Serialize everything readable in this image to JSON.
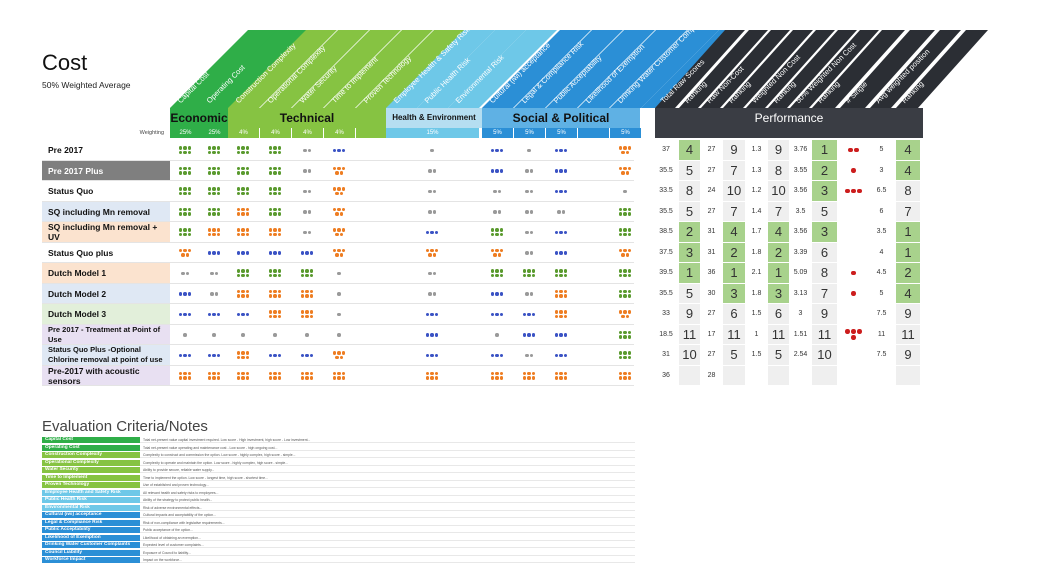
{
  "title": "Cost",
  "subtitle": "50% Weighted Average",
  "weighting_label": "Weighting",
  "criteria_columns": [
    {
      "label": "Capital Cost",
      "color": "#2fae48",
      "weight": "25%"
    },
    {
      "label": "Operating Cost",
      "color": "#2fae48",
      "weight": "25%"
    },
    {
      "label": "Construction Complexity",
      "color": "#86c342",
      "weight": "4%"
    },
    {
      "label": "Operational Complexity",
      "color": "#86c342",
      "weight": "4%"
    },
    {
      "label": "Water Security",
      "color": "#86c342",
      "weight": "4%"
    },
    {
      "label": "Time to Implement",
      "color": "#86c342",
      "weight": "4%"
    },
    {
      "label": "Proven Technology",
      "color": "#86c342",
      "weight": ""
    },
    {
      "label": "Employee Health & Safety Risk",
      "color": "#6ec8e8",
      "weight": ""
    },
    {
      "label": "Public Health Risk",
      "color": "#6ec8e8",
      "weight": "15%"
    },
    {
      "label": "Environmental Risk",
      "color": "#6ec8e8",
      "weight": ""
    },
    {
      "label": "Cultural (iwi) acceptance",
      "color": "#2b8fd6",
      "weight": "5%"
    },
    {
      "label": "Legal & Compliance Risk",
      "color": "#2b8fd6",
      "weight": "5%"
    },
    {
      "label": "Public Acceptability",
      "color": "#2b8fd6",
      "weight": "5%"
    },
    {
      "label": "Likelihood of Exemption",
      "color": "#2b8fd6",
      "weight": ""
    },
    {
      "label": "Drinking Water Customer Comp.",
      "color": "#2b8fd6",
      "weight": "5%"
    }
  ],
  "perf_columns": [
    "Total Raw Scores",
    "Ranking",
    "Raw Non-Cost",
    "Ranking",
    "Weighted Non Cost",
    "Ranking",
    "50% Weighted Non Cost",
    "Ranking",
    "# Single",
    "Avg weighted position",
    "Ranking"
  ],
  "groups": {
    "economic": "Economic",
    "technical": "Technical",
    "health": "Health & Environment",
    "social": "Social & Political",
    "performance": "Performance"
  },
  "colors": {
    "green": "#5a9a2e",
    "blue": "#3a52c4",
    "orange": "#ee7d22",
    "grey": "#999999",
    "red": "#cc1d1d",
    "perf_green": "#a8d28c",
    "perf_header": "#3a3d44"
  },
  "rows": [
    {
      "label": "Pre 2017",
      "bg": "#ffffff",
      "fg": "#111",
      "dots": [
        [
          "green",
          6
        ],
        [
          "green",
          6
        ],
        [
          "green",
          6
        ],
        [
          "green",
          6
        ],
        [
          "grey",
          2
        ],
        [
          "blue",
          3
        ],
        [
          "none",
          0
        ],
        [
          "none",
          0
        ],
        [
          "grey",
          1
        ],
        [
          "none",
          0
        ],
        [
          "blue",
          3
        ],
        [
          "grey",
          1
        ],
        [
          "blue",
          3
        ],
        [
          "none",
          0
        ],
        [
          "orange",
          5
        ]
      ],
      "perf": [
        "37",
        "4",
        "27",
        "9",
        "1.3",
        "9",
        "3.76",
        "1",
        "reds:2",
        "5",
        "4"
      ]
    },
    {
      "label": "Pre 2017 Plus",
      "bg": "#7f7f7f",
      "fg": "#fff",
      "dots": [
        [
          "green",
          6
        ],
        [
          "green",
          6
        ],
        [
          "green",
          6
        ],
        [
          "green",
          6
        ],
        [
          "grey",
          2
        ],
        [
          "orange",
          5
        ],
        [
          "none",
          0
        ],
        [
          "none",
          0
        ],
        [
          "grey",
          2
        ],
        [
          "none",
          0
        ],
        [
          "blue",
          3
        ],
        [
          "grey",
          2
        ],
        [
          "blue",
          3
        ],
        [
          "none",
          0
        ],
        [
          "orange",
          5
        ]
      ],
      "perf": [
        "35.5",
        "5",
        "27",
        "7",
        "1.3",
        "8",
        "3.55",
        "2",
        "reds:1",
        "3",
        "4"
      ]
    },
    {
      "label": "Status Quo",
      "bg": "#ffffff",
      "fg": "#111",
      "dots": [
        [
          "green",
          6
        ],
        [
          "green",
          6
        ],
        [
          "green",
          6
        ],
        [
          "green",
          6
        ],
        [
          "grey",
          2
        ],
        [
          "orange",
          5
        ],
        [
          "none",
          0
        ],
        [
          "none",
          0
        ],
        [
          "grey",
          2
        ],
        [
          "none",
          0
        ],
        [
          "grey",
          2
        ],
        [
          "grey",
          2
        ],
        [
          "blue",
          3
        ],
        [
          "none",
          0
        ],
        [
          "grey",
          1
        ]
      ],
      "perf": [
        "33.5",
        "8",
        "24",
        "10",
        "1.2",
        "10",
        "3.56",
        "3",
        "reds:3",
        "6.5",
        "8"
      ]
    },
    {
      "label": "SQ including Mn removal",
      "bg": "#dfe8f4",
      "fg": "#111",
      "dots": [
        [
          "green",
          6
        ],
        [
          "green",
          6
        ],
        [
          "orange",
          6
        ],
        [
          "green",
          6
        ],
        [
          "grey",
          2
        ],
        [
          "orange",
          5
        ],
        [
          "none",
          0
        ],
        [
          "none",
          0
        ],
        [
          "grey",
          2
        ],
        [
          "none",
          0
        ],
        [
          "grey",
          2
        ],
        [
          "grey",
          2
        ],
        [
          "grey",
          2
        ],
        [
          "none",
          0
        ],
        [
          "green",
          6
        ]
      ],
      "perf": [
        "35.5",
        "5",
        "27",
        "7",
        "1.4",
        "7",
        "3.5",
        "5",
        "reds:0",
        "6",
        "7"
      ]
    },
    {
      "label": "SQ including Mn removal + UV",
      "bg": "#fbe3cf",
      "fg": "#111",
      "dots": [
        [
          "green",
          6
        ],
        [
          "orange",
          6
        ],
        [
          "orange",
          6
        ],
        [
          "orange",
          6
        ],
        [
          "grey",
          2
        ],
        [
          "orange",
          5
        ],
        [
          "none",
          0
        ],
        [
          "none",
          0
        ],
        [
          "blue",
          3
        ],
        [
          "none",
          0
        ],
        [
          "green",
          6
        ],
        [
          "grey",
          2
        ],
        [
          "blue",
          3
        ],
        [
          "none",
          0
        ],
        [
          "green",
          6
        ]
      ],
      "perf": [
        "38.5",
        "2",
        "31",
        "4",
        "1.7",
        "4",
        "3.56",
        "3",
        "reds:0",
        "3.5",
        "1"
      ]
    },
    {
      "label": "Status Quo plus",
      "bg": "#ffffff",
      "fg": "#111",
      "dots": [
        [
          "orange",
          5
        ],
        [
          "blue",
          3
        ],
        [
          "blue",
          3
        ],
        [
          "blue",
          3
        ],
        [
          "blue",
          3
        ],
        [
          "orange",
          5
        ],
        [
          "none",
          0
        ],
        [
          "none",
          0
        ],
        [
          "orange",
          5
        ],
        [
          "none",
          0
        ],
        [
          "orange",
          5
        ],
        [
          "grey",
          2
        ],
        [
          "blue",
          3
        ],
        [
          "none",
          0
        ],
        [
          "orange",
          5
        ]
      ],
      "perf": [
        "37.5",
        "3",
        "31",
        "2",
        "1.8",
        "2",
        "3.39",
        "6",
        "reds:0",
        "4",
        "1"
      ]
    },
    {
      "label": "Dutch Model 1",
      "bg": "#fbe3cf",
      "fg": "#111",
      "dots": [
        [
          "grey",
          2
        ],
        [
          "grey",
          2
        ],
        [
          "green",
          6
        ],
        [
          "green",
          6
        ],
        [
          "green",
          6
        ],
        [
          "grey",
          1
        ],
        [
          "none",
          0
        ],
        [
          "none",
          0
        ],
        [
          "grey",
          2
        ],
        [
          "none",
          0
        ],
        [
          "green",
          6
        ],
        [
          "green",
          6
        ],
        [
          "green",
          6
        ],
        [
          "none",
          0
        ],
        [
          "green",
          6
        ]
      ],
      "perf": [
        "39.5",
        "1",
        "36",
        "1",
        "2.1",
        "1",
        "5.09",
        "8",
        "reds:1",
        "4.5",
        "2"
      ]
    },
    {
      "label": "Dutch Model 2",
      "bg": "#dfe8f4",
      "fg": "#111",
      "dots": [
        [
          "blue",
          3
        ],
        [
          "grey",
          2
        ],
        [
          "orange",
          6
        ],
        [
          "orange",
          6
        ],
        [
          "orange",
          6
        ],
        [
          "grey",
          1
        ],
        [
          "none",
          0
        ],
        [
          "none",
          0
        ],
        [
          "grey",
          2
        ],
        [
          "none",
          0
        ],
        [
          "blue",
          3
        ],
        [
          "grey",
          2
        ],
        [
          "orange",
          6
        ],
        [
          "none",
          0
        ],
        [
          "green",
          6
        ]
      ],
      "perf": [
        "35.5",
        "5",
        "30",
        "3",
        "1.8",
        "3",
        "3.13",
        "7",
        "reds:1",
        "5",
        "4"
      ]
    },
    {
      "label": "Dutch Model 3",
      "bg": "#e2efda",
      "fg": "#111",
      "dots": [
        [
          "blue",
          3
        ],
        [
          "blue",
          3
        ],
        [
          "blue",
          3
        ],
        [
          "orange",
          6
        ],
        [
          "orange",
          6
        ],
        [
          "grey",
          1
        ],
        [
          "none",
          0
        ],
        [
          "none",
          0
        ],
        [
          "blue",
          3
        ],
        [
          "none",
          0
        ],
        [
          "blue",
          3
        ],
        [
          "blue",
          3
        ],
        [
          "orange",
          6
        ],
        [
          "none",
          0
        ],
        [
          "orange",
          5
        ]
      ],
      "perf": [
        "33",
        "9",
        "27",
        "6",
        "1.5",
        "6",
        "3",
        "9",
        "reds:0",
        "7.5",
        "9"
      ]
    },
    {
      "label": "Pre 2017 - Treatment at Point of Use",
      "bg": "#e8e0f2",
      "fg": "#111",
      "dots": [
        [
          "grey",
          1
        ],
        [
          "grey",
          1
        ],
        [
          "grey",
          1
        ],
        [
          "grey",
          1
        ],
        [
          "grey",
          1
        ],
        [
          "grey",
          1
        ],
        [
          "none",
          0
        ],
        [
          "none",
          0
        ],
        [
          "blue",
          3
        ],
        [
          "none",
          0
        ],
        [
          "grey",
          1
        ],
        [
          "blue",
          3
        ],
        [
          "blue",
          3
        ],
        [
          "none",
          0
        ],
        [
          "green",
          6
        ]
      ],
      "perf": [
        "18.5",
        "11",
        "17",
        "11",
        "1",
        "11",
        "1.51",
        "11",
        "reds:4",
        "11",
        "11"
      ]
    },
    {
      "label": "Status Quo Plus -Optional Chlorine removal at point of use",
      "bg": "#dfe8f4",
      "fg": "#111",
      "dots": [
        [
          "blue",
          3
        ],
        [
          "blue",
          3
        ],
        [
          "orange",
          6
        ],
        [
          "blue",
          3
        ],
        [
          "blue",
          3
        ],
        [
          "orange",
          5
        ],
        [
          "none",
          0
        ],
        [
          "none",
          0
        ],
        [
          "blue",
          3
        ],
        [
          "none",
          0
        ],
        [
          "blue",
          3
        ],
        [
          "grey",
          2
        ],
        [
          "blue",
          3
        ],
        [
          "none",
          0
        ],
        [
          "green",
          6
        ]
      ],
      "perf": [
        "31",
        "10",
        "27",
        "5",
        "1.5",
        "5",
        "2.54",
        "10",
        "reds:0",
        "7.5",
        "9"
      ]
    },
    {
      "label": "Pre-2017 with acoustic sensors",
      "bg": "#e8e0f2",
      "fg": "#111",
      "dots": [
        [
          "orange",
          6
        ],
        [
          "orange",
          6
        ],
        [
          "orange",
          6
        ],
        [
          "orange",
          6
        ],
        [
          "orange",
          6
        ],
        [
          "orange",
          6
        ],
        [
          "none",
          0
        ],
        [
          "none",
          0
        ],
        [
          "orange",
          6
        ],
        [
          "none",
          0
        ],
        [
          "orange",
          6
        ],
        [
          "orange",
          6
        ],
        [
          "orange",
          6
        ],
        [
          "none",
          0
        ],
        [
          "orange",
          6
        ]
      ],
      "perf": [
        "36",
        "",
        "28",
        "",
        "",
        "",
        "",
        "",
        "",
        "",
        ""
      ]
    }
  ],
  "notes_title": "Evaluation Criteria/Notes",
  "notes": [
    {
      "label": "Capital Cost",
      "color": "#2fae48",
      "text": "Total net-present value capital investment required. Low score - High investment, high score - Low investment..."
    },
    {
      "label": "Operating Cost",
      "color": "#2fae48",
      "text": "Total net-present value operating and maintenance cost - Low score - high ongoing cost..."
    },
    {
      "label": "Construction Complexity",
      "color": "#86c342",
      "text": "Complexity to construct and commission the option. Low score - highly complex, high score - simple..."
    },
    {
      "label": "Operational Complexity",
      "color": "#86c342",
      "text": "Complexity to operate and maintain the option. Low score - highly complex, high score - simple..."
    },
    {
      "label": "Water Security",
      "color": "#86c342",
      "text": "Ability to provide secure, reliable water supply..."
    },
    {
      "label": "Time to Implement",
      "color": "#86c342",
      "text": "Time to implement the option. Low score - longest time, high score - shortest time..."
    },
    {
      "label": "Proven Technology",
      "color": "#86c342",
      "text": "Use of established and proven technology..."
    },
    {
      "label": "Employee Health and Safety Risk",
      "color": "#6ec8e8",
      "text": "All relevant health and safety risks to employees..."
    },
    {
      "label": "Public Health Risk",
      "color": "#6ec8e8",
      "text": "Ability of the strategy to protect public health..."
    },
    {
      "label": "Environmental Risk",
      "color": "#6ec8e8",
      "text": "Risk of adverse environmental effects..."
    },
    {
      "label": "Cultural (iwi) acceptance",
      "color": "#2b8fd6",
      "text": "Cultural impacts and acceptability of the option..."
    },
    {
      "label": "Legal & Compliance Risk",
      "color": "#2b8fd6",
      "text": "Risk of non-compliance with legislative requirements..."
    },
    {
      "label": "Public Acceptability",
      "color": "#2b8fd6",
      "text": "Public acceptance of the option..."
    },
    {
      "label": "Likelihood of Exemption",
      "color": "#2b8fd6",
      "text": "Likelihood of obtaining an exemption..."
    },
    {
      "label": "Drinking Water Customer Complaints",
      "color": "#2b8fd6",
      "text": "Expected level of customer complaints..."
    },
    {
      "label": "Council Liability",
      "color": "#2b8fd6",
      "text": "Exposure of Council to liability..."
    },
    {
      "label": "Workforce Impact",
      "color": "#2b8fd6",
      "text": "Impact on the workforce..."
    }
  ]
}
